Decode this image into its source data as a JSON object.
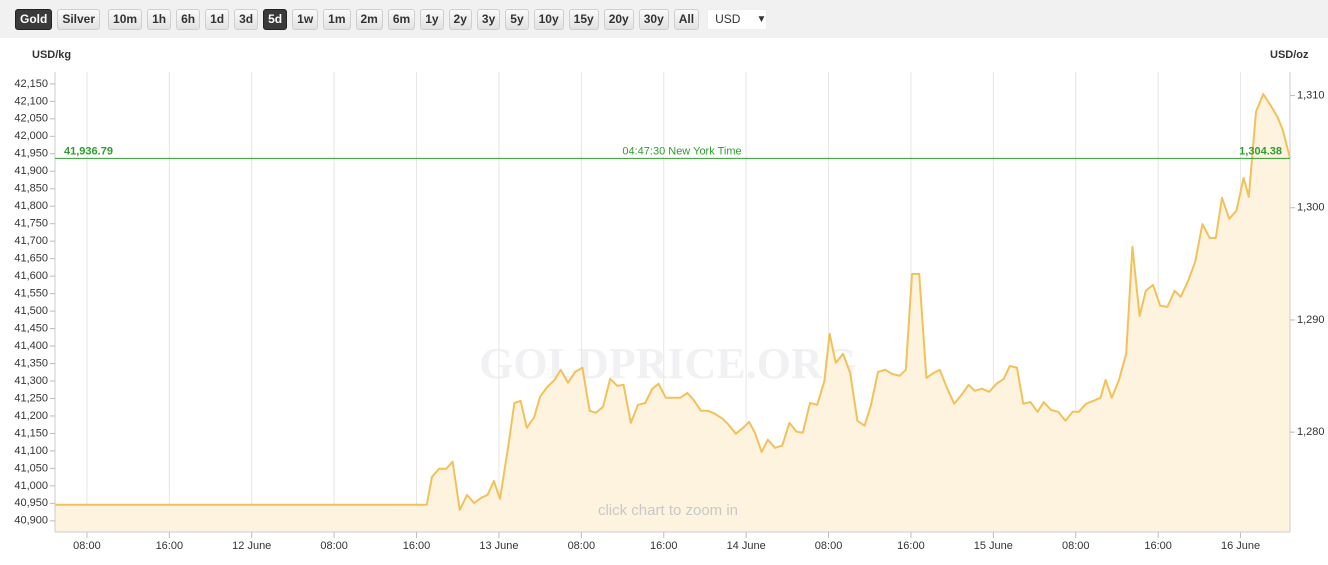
{
  "toolbar": {
    "buttons": [
      {
        "label": "Gold",
        "selected": true
      },
      {
        "label": "Silver",
        "selected": false
      },
      {
        "label": "10m",
        "selected": false
      },
      {
        "label": "1h",
        "selected": false
      },
      {
        "label": "6h",
        "selected": false
      },
      {
        "label": "1d",
        "selected": false
      },
      {
        "label": "3d",
        "selected": false
      },
      {
        "label": "5d",
        "selected": true
      },
      {
        "label": "1w",
        "selected": false
      },
      {
        "label": "1m",
        "selected": false
      },
      {
        "label": "2m",
        "selected": false
      },
      {
        "label": "6m",
        "selected": false
      },
      {
        "label": "1y",
        "selected": false
      },
      {
        "label": "2y",
        "selected": false
      },
      {
        "label": "3y",
        "selected": false
      },
      {
        "label": "5y",
        "selected": false
      },
      {
        "label": "10y",
        "selected": false
      },
      {
        "label": "15y",
        "selected": false
      },
      {
        "label": "20y",
        "selected": false
      },
      {
        "label": "30y",
        "selected": false
      },
      {
        "label": "All",
        "selected": false
      }
    ],
    "currency": "USD"
  },
  "chart_data": {
    "type": "area",
    "y_axis_label": "USD/kg",
    "y2_axis_label": "USD/oz",
    "watermark": "GOLDPRICE.ORG",
    "hint": "click chart to zoom in",
    "price_line": {
      "value": 41936.79,
      "label": "41,936.79"
    },
    "price_line_y2": {
      "value": 1304.38,
      "label": "1,304.38"
    },
    "time_label": "04:47:30 New York Time",
    "color": "#f2c25a",
    "fill": "#fdf3de",
    "price_color": "#2e9e2e",
    "grid": true,
    "x": [
      4.9,
      41.0,
      41.5,
      42.2,
      42.9,
      43.5,
      44.2,
      44.9,
      45.6,
      46.3,
      46.9,
      47.5,
      48.1,
      48.9,
      49.5,
      50.1,
      50.7,
      51.4,
      52.0,
      52.7,
      53.4,
      54.0,
      54.7,
      55.4,
      56.1,
      56.8,
      57.4,
      58.1,
      58.8,
      59.5,
      60.1,
      60.8,
      61.5,
      62.2,
      62.9,
      63.5,
      64.2,
      64.9,
      65.6,
      66.3,
      66.9,
      67.6,
      68.3,
      69.0,
      69.7,
      70.3,
      71.0,
      71.7,
      72.3,
      72.9,
      73.5,
      74.1,
      74.8,
      75.5,
      76.2,
      76.9,
      77.5,
      78.2,
      78.9,
      79.6,
      80.1,
      80.7,
      81.4,
      82.1,
      82.8,
      83.5,
      84.1,
      84.8,
      85.5,
      86.2,
      86.9,
      87.5,
      88.1,
      88.8,
      89.5,
      90.2,
      90.8,
      91.5,
      92.2,
      92.9,
      93.6,
      94.2,
      94.9,
      95.6,
      96.3,
      97.0,
      97.6,
      98.3,
      98.9,
      99.6,
      100.3,
      100.9,
      101.6,
      102.3,
      103.0,
      103.7,
      104.3,
      105.0,
      105.7,
      106.4,
      106.9,
      107.5,
      108.2,
      108.9,
      109.5,
      110.2,
      110.8,
      111.5,
      112.2,
      112.9,
      113.6,
      114.2,
      114.9,
      115.6,
      116.3,
      117.0,
      117.6,
      118.2,
      118.9,
      119.6,
      120.3,
      120.8,
      121.5,
      122.2,
      122.9,
      123.6,
      124.1,
      124.8
    ],
    "values": [
      40946,
      40946,
      41026,
      41049,
      41049,
      41069,
      40931,
      40974,
      40951,
      40966,
      40974,
      41014,
      40963,
      41112,
      41237,
      41243,
      41166,
      41195,
      41255,
      41283,
      41303,
      41332,
      41295,
      41326,
      41338,
      41215,
      41209,
      41226,
      41306,
      41286,
      41289,
      41180,
      41232,
      41237,
      41278,
      41292,
      41252,
      41252,
      41252,
      41266,
      41246,
      41215,
      41215,
      41206,
      41192,
      41175,
      41149,
      41166,
      41183,
      41149,
      41097,
      41132,
      41109,
      41115,
      41180,
      41155,
      41152,
      41237,
      41232,
      41300,
      41435,
      41352,
      41378,
      41323,
      41186,
      41172,
      41229,
      41326,
      41332,
      41320,
      41315,
      41332,
      41606,
      41606,
      41309,
      41323,
      41332,
      41280,
      41235,
      41260,
      41289,
      41272,
      41278,
      41269,
      41292,
      41306,
      41343,
      41338,
      41235,
      41240,
      41212,
      41240,
      41217,
      41212,
      41186,
      41212,
      41212,
      41235,
      41243,
      41252,
      41303,
      41252,
      41303,
      41378,
      41684,
      41486,
      41558,
      41575,
      41515,
      41512,
      41558,
      41541,
      41586,
      41641,
      41749,
      41709,
      41709,
      41824,
      41764,
      41787,
      41881,
      41827,
      42070,
      42121,
      42090,
      42055,
      42018,
      41937
    ],
    "xlim": [
      4.9,
      124.8
    ],
    "xticks": [
      {
        "value": 8,
        "label": "08:00"
      },
      {
        "value": 16,
        "label": "16:00"
      },
      {
        "value": 24,
        "label": "12 June"
      },
      {
        "value": 32,
        "label": "08:00"
      },
      {
        "value": 40,
        "label": "16:00"
      },
      {
        "value": 48,
        "label": "13 June"
      },
      {
        "value": 56,
        "label": "08:00"
      },
      {
        "value": 64,
        "label": "16:00"
      },
      {
        "value": 72,
        "label": "14 June"
      },
      {
        "value": 80,
        "label": "08:00"
      },
      {
        "value": 88,
        "label": "16:00"
      },
      {
        "value": 96,
        "label": "15 June"
      },
      {
        "value": 104,
        "label": "08:00"
      },
      {
        "value": 112,
        "label": "16:00"
      },
      {
        "value": 120,
        "label": "16 June"
      }
    ],
    "ylim": [
      40868,
      42184
    ],
    "yticks": [
      {
        "value": 40900,
        "label": "40,900"
      },
      {
        "value": 40950,
        "label": "40,950"
      },
      {
        "value": 41000,
        "label": "41,000"
      },
      {
        "value": 41050,
        "label": "41,050"
      },
      {
        "value": 41100,
        "label": "41,100"
      },
      {
        "value": 41150,
        "label": "41,150"
      },
      {
        "value": 41200,
        "label": "41,200"
      },
      {
        "value": 41250,
        "label": "41,250"
      },
      {
        "value": 41300,
        "label": "41,300"
      },
      {
        "value": 41350,
        "label": "41,350"
      },
      {
        "value": 41400,
        "label": "41,400"
      },
      {
        "value": 41450,
        "label": "41,450"
      },
      {
        "value": 41500,
        "label": "41,500"
      },
      {
        "value": 41550,
        "label": "41,550"
      },
      {
        "value": 41600,
        "label": "41,600"
      },
      {
        "value": 41650,
        "label": "41,650"
      },
      {
        "value": 41700,
        "label": "41,700"
      },
      {
        "value": 41750,
        "label": "41,750"
      },
      {
        "value": 41800,
        "label": "41,800"
      },
      {
        "value": 41850,
        "label": "41,850"
      },
      {
        "value": 41900,
        "label": "41,900"
      },
      {
        "value": 41950,
        "label": "41,950"
      },
      {
        "value": 42000,
        "label": "42,000"
      },
      {
        "value": 42050,
        "label": "42,050"
      },
      {
        "value": 42100,
        "label": "42,100"
      },
      {
        "value": 42150,
        "label": "42,150"
      }
    ],
    "y2lim": [
      1271.1,
      1312.1
    ],
    "y2ticks": [
      {
        "value": 1280,
        "label": "1,280"
      },
      {
        "value": 1290,
        "label": "1,290"
      },
      {
        "value": 1300,
        "label": "1,300"
      },
      {
        "value": 1310,
        "label": "1,310"
      }
    ]
  }
}
